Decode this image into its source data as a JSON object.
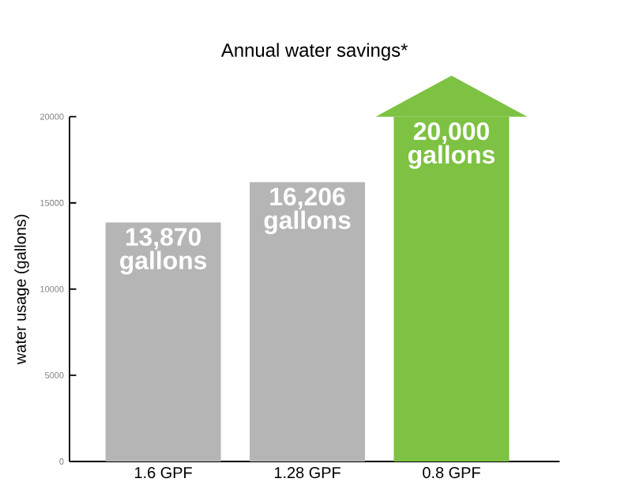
{
  "chart_data": {
    "type": "bar",
    "title": "Annual water savings*",
    "ylabel": "water usage (gallons)",
    "categories": [
      "1.6 GPF",
      "1.28 GPF",
      "0.8 GPF"
    ],
    "values": [
      13870,
      16206,
      20000
    ],
    "colors": [
      "#b5b5b5",
      "#b5b5b5",
      "#7dc242"
    ],
    "value_labels": [
      "13,870 gallons",
      "16,206 gallons",
      "20,000 gallons"
    ],
    "ylim": [
      0,
      20000
    ],
    "yticks": [
      0,
      5000,
      10000,
      15000,
      20000
    ],
    "grid": false
  }
}
